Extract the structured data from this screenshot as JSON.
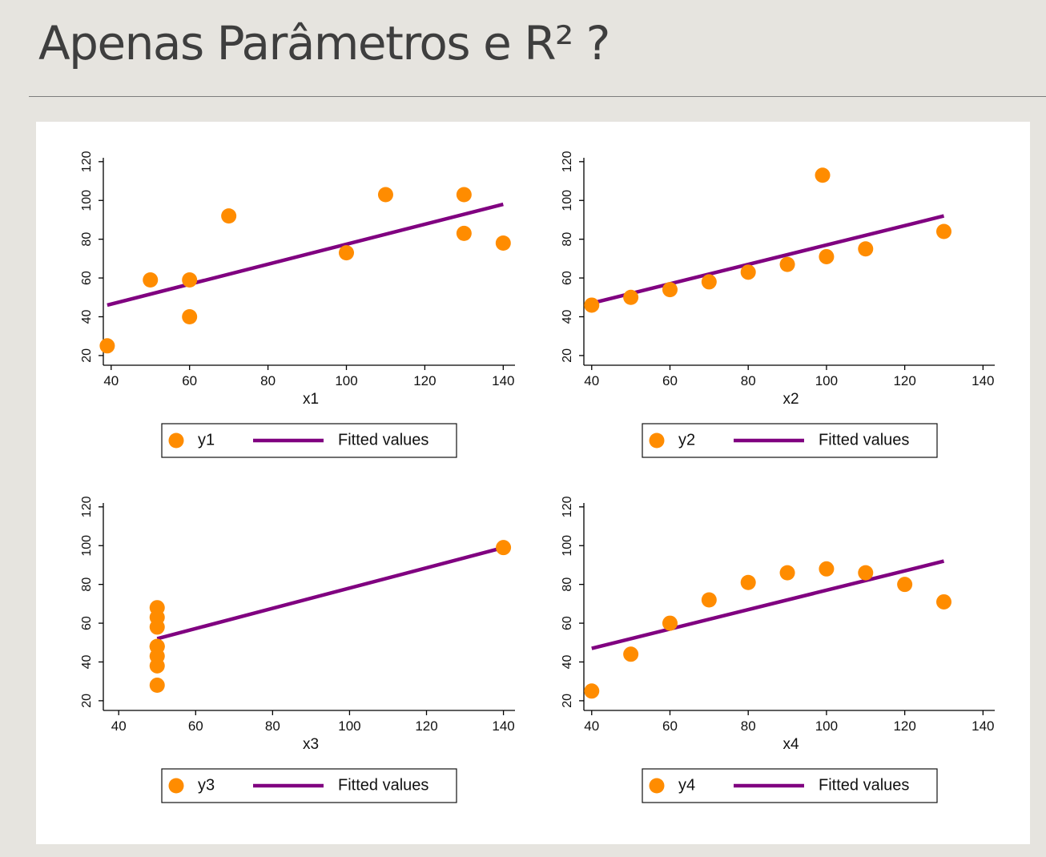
{
  "slide": {
    "title": "Apenas Parâmetros e R² ?"
  },
  "colors": {
    "points": "#ff8c00",
    "fit_line": "#800080",
    "axis": "#000000"
  },
  "chart_data": [
    {
      "type": "scatter",
      "xlabel": "x1",
      "ylabel": "",
      "xlim": [
        38,
        143
      ],
      "ylim": [
        15,
        122
      ],
      "xticks": [
        "40",
        "60",
        "80",
        "100",
        "120",
        "140"
      ],
      "yticks": [
        "20",
        "40",
        "60",
        "80",
        "100",
        "120"
      ],
      "grid": false,
      "legend_position": "bottom",
      "series": [
        {
          "name": "y1",
          "kind": "points",
          "x": [
            39,
            50,
            60,
            60,
            70,
            100,
            110,
            130,
            130,
            140
          ],
          "y": [
            25,
            59,
            40,
            59,
            92,
            73,
            103,
            103,
            83,
            78
          ]
        },
        {
          "name": "Fitted values",
          "kind": "line",
          "x": [
            39,
            140
          ],
          "y": [
            46,
            98
          ]
        }
      ]
    },
    {
      "type": "scatter",
      "xlabel": "x2",
      "ylabel": "",
      "xlim": [
        38,
        143
      ],
      "ylim": [
        15,
        122
      ],
      "xticks": [
        "40",
        "60",
        "80",
        "100",
        "120",
        "140"
      ],
      "yticks": [
        "20",
        "40",
        "60",
        "80",
        "100",
        "120"
      ],
      "grid": false,
      "legend_position": "bottom",
      "series": [
        {
          "name": "y2",
          "kind": "points",
          "x": [
            40,
            50,
            60,
            70,
            80,
            90,
            99,
            100,
            110,
            130
          ],
          "y": [
            46,
            50,
            54,
            58,
            63,
            67,
            113,
            71,
            75,
            84
          ]
        },
        {
          "name": "Fitted values",
          "kind": "line",
          "x": [
            40,
            130
          ],
          "y": [
            47,
            92
          ]
        }
      ]
    },
    {
      "type": "scatter",
      "xlabel": "x3",
      "ylabel": "",
      "xlim": [
        36,
        143
      ],
      "ylim": [
        15,
        122
      ],
      "xticks": [
        "40",
        "60",
        "80",
        "100",
        "120",
        "140"
      ],
      "yticks": [
        "20",
        "40",
        "60",
        "80",
        "100",
        "120"
      ],
      "grid": false,
      "legend_position": "bottom",
      "series": [
        {
          "name": "y3",
          "kind": "points",
          "x": [
            50,
            50,
            50,
            50,
            50,
            50,
            50,
            50,
            140
          ],
          "y": [
            28,
            38,
            43,
            48,
            58,
            63,
            68,
            48,
            99
          ]
        },
        {
          "name": "Fitted values",
          "kind": "line",
          "x": [
            50,
            140
          ],
          "y": [
            52,
            99
          ]
        }
      ]
    },
    {
      "type": "scatter",
      "xlabel": "x4",
      "ylabel": "",
      "xlim": [
        38,
        143
      ],
      "ylim": [
        15,
        122
      ],
      "xticks": [
        "40",
        "60",
        "80",
        "100",
        "120",
        "140"
      ],
      "yticks": [
        "20",
        "40",
        "60",
        "80",
        "100",
        "120"
      ],
      "grid": false,
      "legend_position": "bottom",
      "series": [
        {
          "name": "y4",
          "kind": "points",
          "x": [
            40,
            50,
            60,
            70,
            80,
            90,
            100,
            110,
            120,
            130
          ],
          "y": [
            25,
            44,
            60,
            72,
            81,
            86,
            88,
            86,
            80,
            71
          ]
        },
        {
          "name": "Fitted values",
          "kind": "line",
          "x": [
            40,
            130
          ],
          "y": [
            47,
            92
          ]
        }
      ]
    }
  ]
}
